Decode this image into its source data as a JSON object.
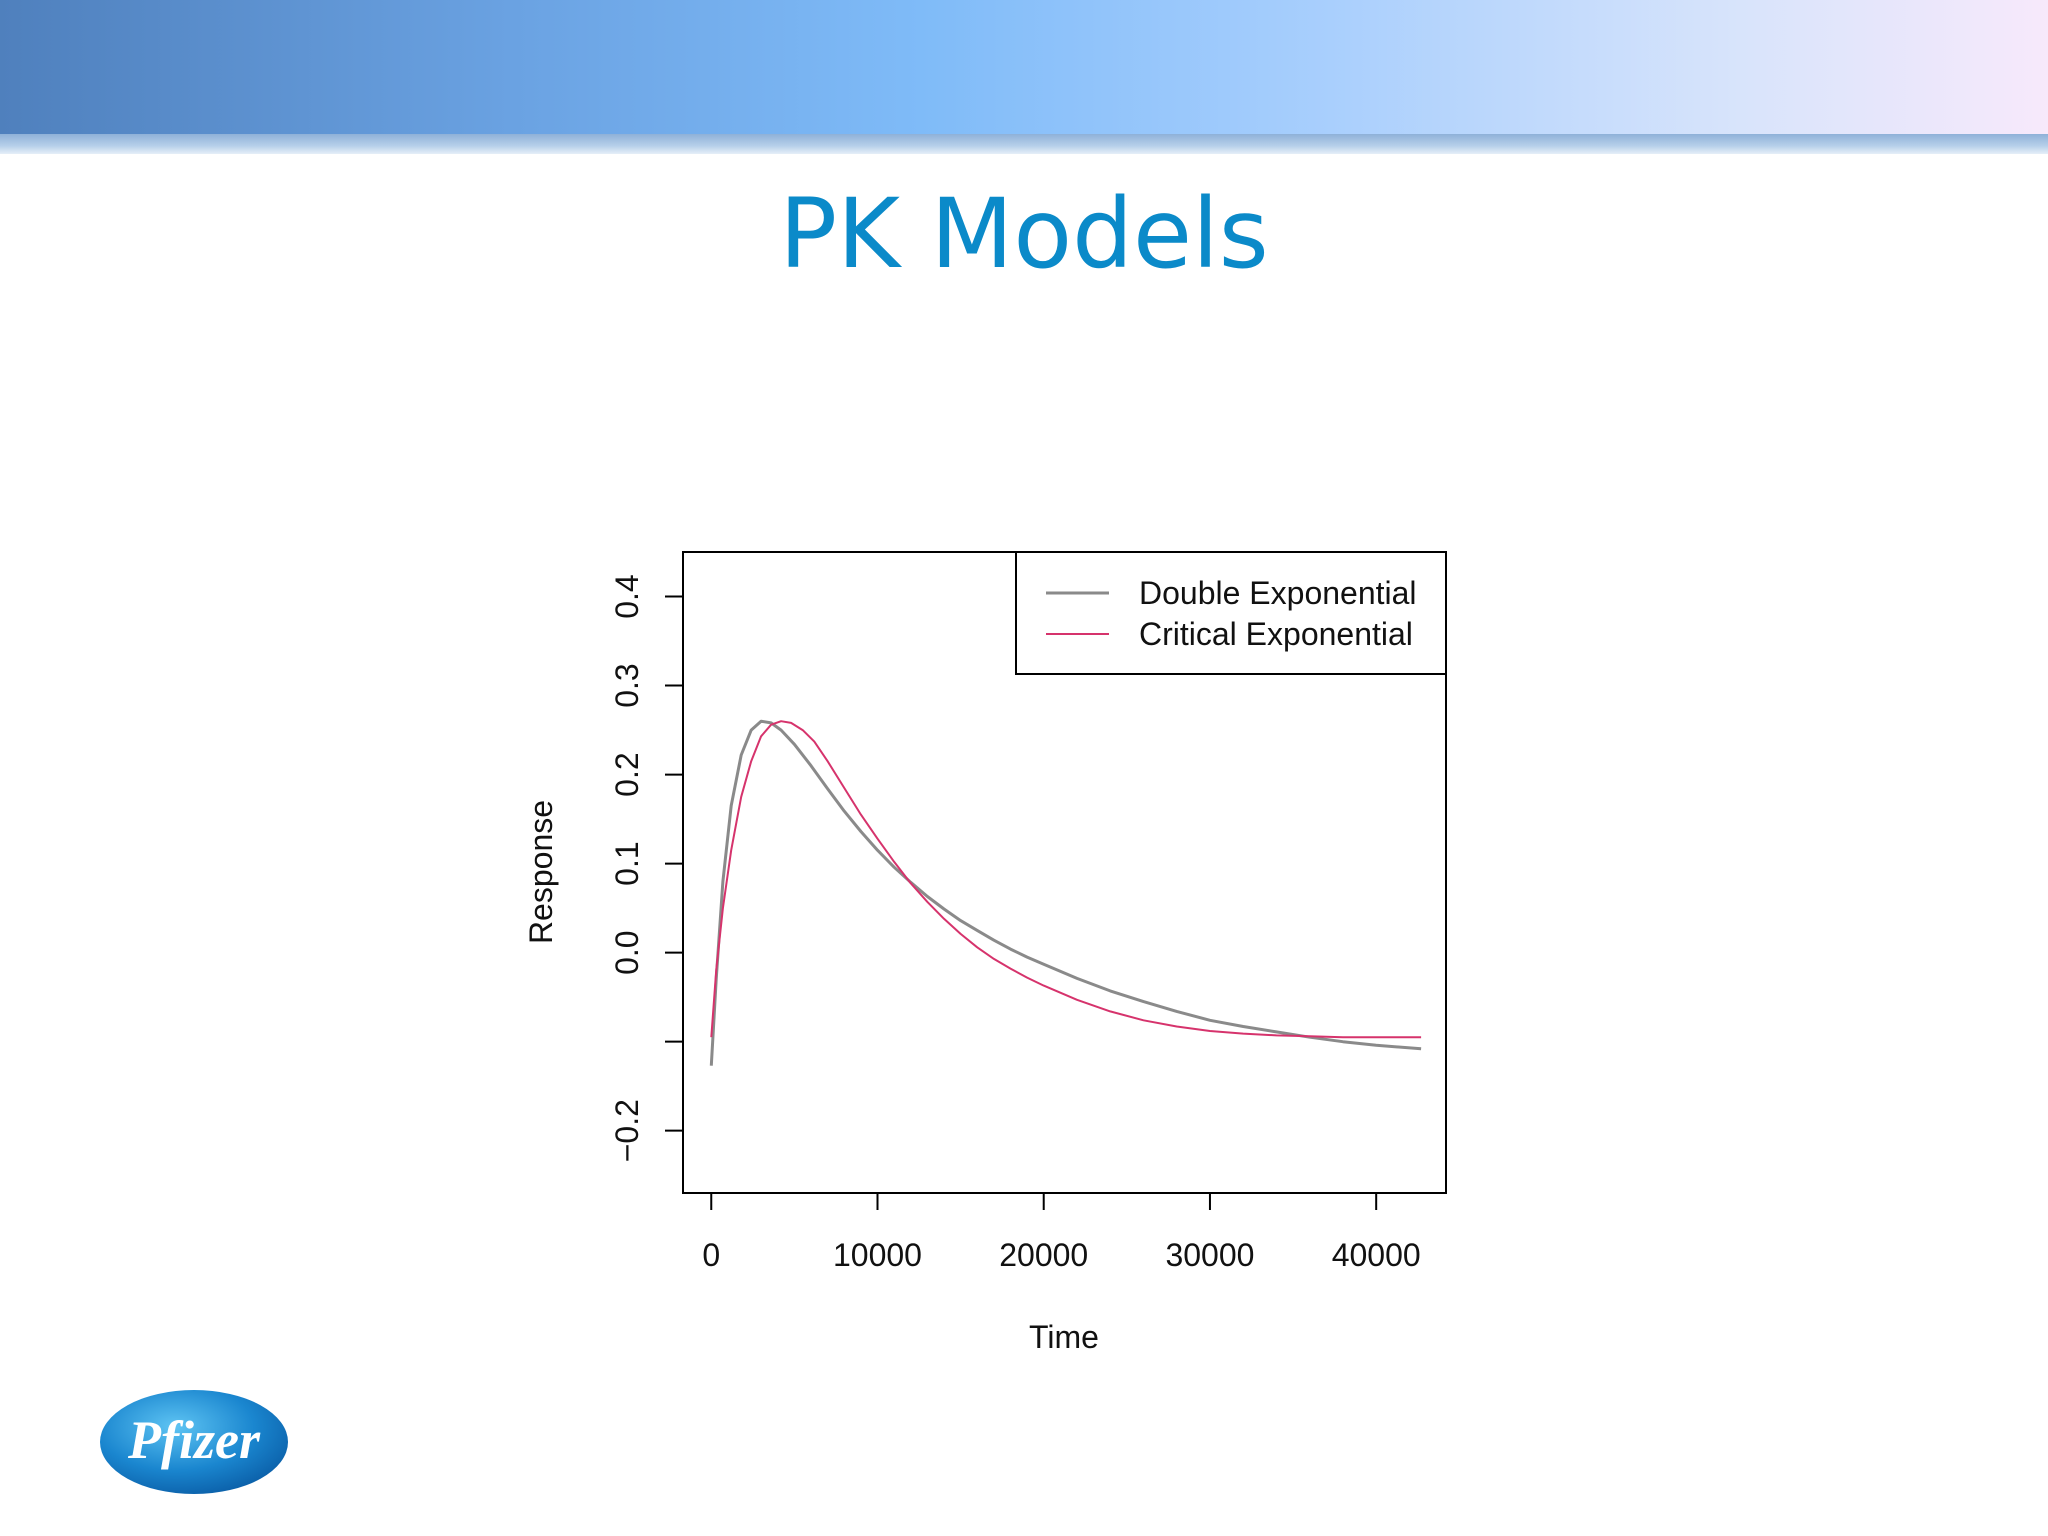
{
  "slide": {
    "title": "PK Models"
  },
  "logo": {
    "text": "Pfizer",
    "color": "#1a7ec8"
  },
  "chart_data": {
    "type": "line",
    "title": "",
    "xlabel": "Time",
    "ylabel": "Response",
    "xlim": [
      -1700,
      44200
    ],
    "ylim": [
      -0.27,
      0.45
    ],
    "xticks": [
      0,
      10000,
      20000,
      30000,
      40000
    ],
    "xtick_labels": [
      "0",
      "10000",
      "20000",
      "30000",
      "40000"
    ],
    "yticks": [
      -0.2,
      -0.1,
      0.0,
      0.1,
      0.2,
      0.3,
      0.4
    ],
    "ytick_labels": [
      "−0.2",
      "",
      "0.0",
      "0.1",
      "0.2",
      "0.3",
      "0.4"
    ],
    "grid": false,
    "legend_position": "top-right",
    "series": [
      {
        "name": "Double Exponential",
        "color": "#8a8a8a",
        "x": [
          0,
          300,
          700,
          1200,
          1800,
          2400,
          3000,
          3600,
          4200,
          5000,
          6000,
          7000,
          8000,
          9000,
          10000,
          11000,
          12000,
          13000,
          14000,
          15000,
          16000,
          17000,
          18000,
          19000,
          20000,
          22000,
          24000,
          26000,
          28000,
          30000,
          32000,
          34000,
          36000,
          38000,
          40000,
          42700
        ],
        "y": [
          -0.127,
          -0.03,
          0.08,
          0.165,
          0.222,
          0.25,
          0.26,
          0.258,
          0.25,
          0.234,
          0.21,
          0.184,
          0.159,
          0.136,
          0.115,
          0.096,
          0.079,
          0.063,
          0.049,
          0.036,
          0.025,
          0.014,
          0.004,
          -0.005,
          -0.013,
          -0.029,
          -0.043,
          -0.055,
          -0.066,
          -0.076,
          -0.083,
          -0.089,
          -0.095,
          -0.1,
          -0.104,
          -0.108
        ]
      },
      {
        "name": "Critical Exponential",
        "color": "#d6336c",
        "x": [
          0,
          300,
          700,
          1200,
          1800,
          2400,
          3000,
          3600,
          4200,
          4800,
          5500,
          6200,
          7000,
          8000,
          9000,
          10000,
          11000,
          12000,
          13000,
          14000,
          15000,
          16000,
          17000,
          18000,
          19000,
          20000,
          22000,
          24000,
          26000,
          28000,
          30000,
          32000,
          34000,
          36000,
          38000,
          40000,
          42700
        ],
        "y": [
          -0.095,
          -0.02,
          0.05,
          0.115,
          0.175,
          0.215,
          0.243,
          0.256,
          0.26,
          0.258,
          0.25,
          0.237,
          0.215,
          0.185,
          0.155,
          0.128,
          0.102,
          0.078,
          0.057,
          0.038,
          0.021,
          0.006,
          -0.007,
          -0.018,
          -0.028,
          -0.037,
          -0.053,
          -0.066,
          -0.076,
          -0.083,
          -0.088,
          -0.091,
          -0.093,
          -0.094,
          -0.095,
          -0.095,
          -0.095
        ]
      }
    ]
  }
}
